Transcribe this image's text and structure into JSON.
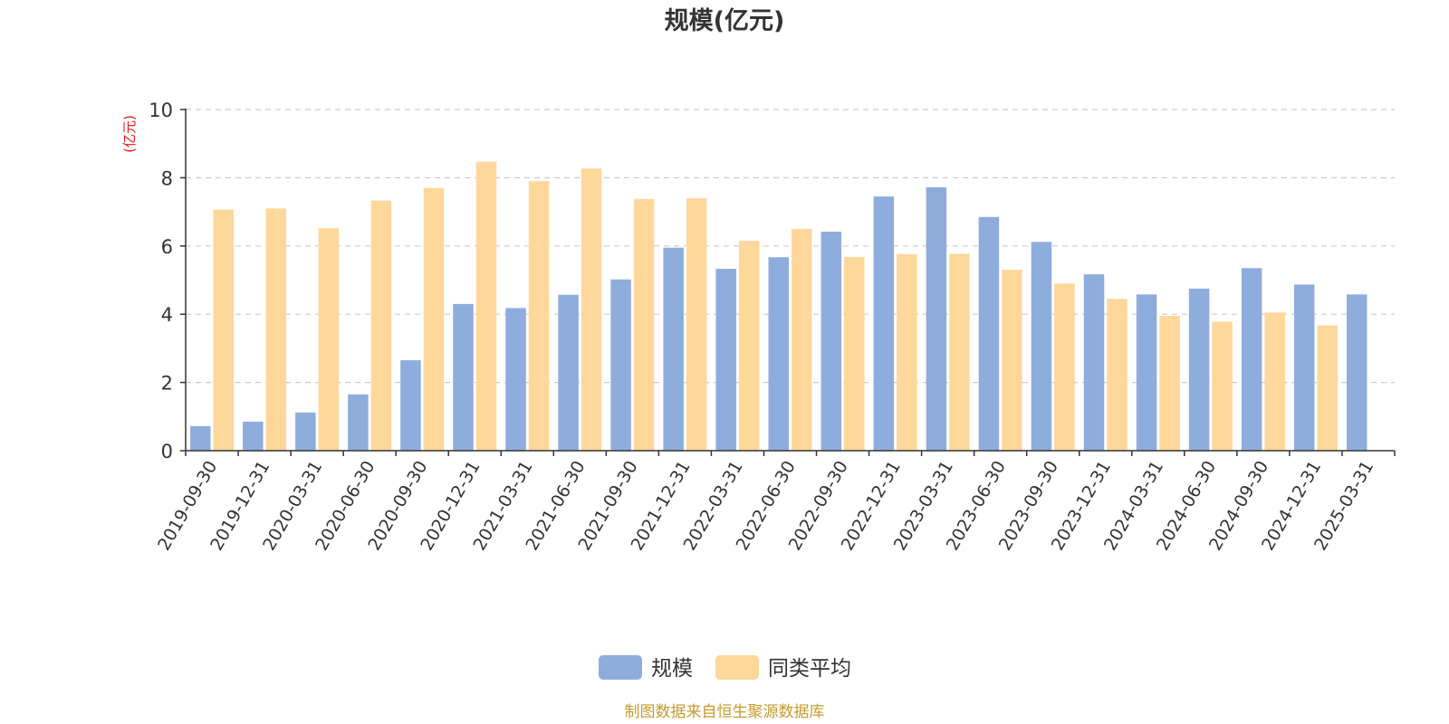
{
  "chart_data": {
    "type": "bar",
    "title": "规模(亿元)",
    "xlabel": "",
    "ylabel": "(亿元)",
    "ylim": [
      0,
      10
    ],
    "yticks": [
      0,
      2,
      4,
      6,
      8,
      10
    ],
    "grid": "horizontal dashed",
    "legend_position": "bottom-center",
    "categories": [
      "2019-09-30",
      "2019-12-31",
      "2020-03-31",
      "2020-06-30",
      "2020-09-30",
      "2020-12-31",
      "2021-03-31",
      "2021-06-30",
      "2021-09-30",
      "2021-12-31",
      "2022-03-31",
      "2022-06-30",
      "2022-09-30",
      "2022-12-31",
      "2023-03-31",
      "2023-06-30",
      "2023-09-30",
      "2023-12-31",
      "2024-03-31",
      "2024-06-30",
      "2024-09-30",
      "2024-12-31",
      "2025-03-31"
    ],
    "series": [
      {
        "name": "规模",
        "color": "#8eaddc",
        "values": [
          0.72,
          0.85,
          1.12,
          1.65,
          2.65,
          4.3,
          4.18,
          4.57,
          5.02,
          5.95,
          5.33,
          5.67,
          6.42,
          7.45,
          7.72,
          6.85,
          6.12,
          5.17,
          4.58,
          4.75,
          5.35,
          4.87,
          4.58
        ]
      },
      {
        "name": "同类平均",
        "color": "#fed79b",
        "values": [
          7.07,
          7.1,
          6.52,
          7.33,
          7.7,
          8.47,
          7.9,
          8.27,
          7.38,
          7.4,
          6.15,
          6.5,
          5.68,
          5.76,
          5.77,
          5.3,
          4.9,
          4.45,
          3.95,
          3.78,
          4.05,
          3.67,
          null
        ]
      }
    ]
  },
  "footer": {
    "source": "制图数据来自恒生聚源数据库"
  }
}
